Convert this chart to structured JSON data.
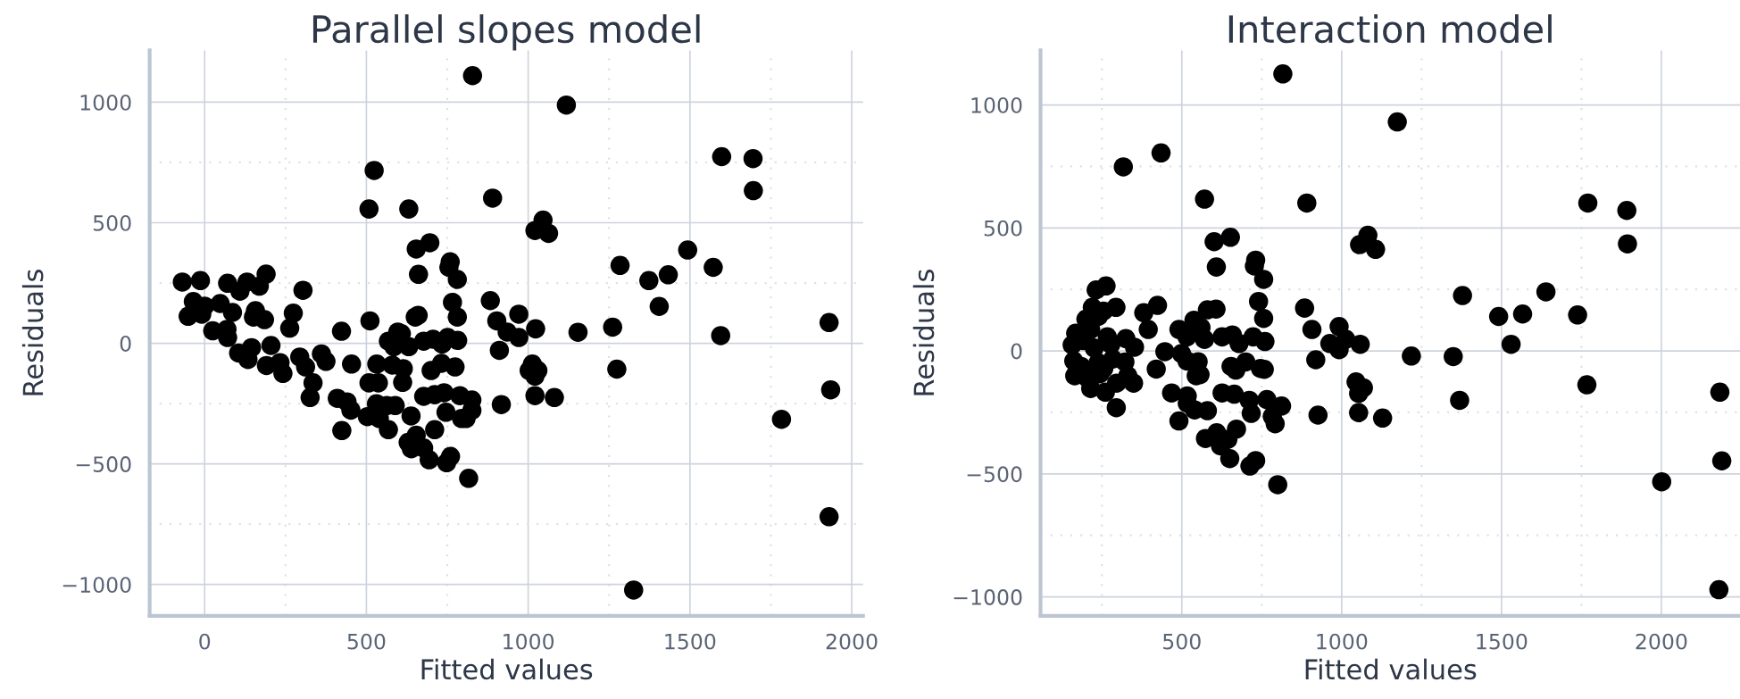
{
  "chart_data": [
    {
      "type": "scatter",
      "title": "Parallel slopes model",
      "xlabel": "Fitted values",
      "ylabel": "Residuals",
      "marker": "circle",
      "grid": true,
      "xlim": [
        -170,
        2035
      ],
      "ylim": [
        -1130,
        1215
      ],
      "xticks": [
        0,
        {
          "value": 250,
          "label": null
        },
        500,
        {
          "value": 750,
          "label": null
        },
        1000,
        {
          "value": 1250,
          "label": null
        },
        1500,
        {
          "value": 1750,
          "label": null
        },
        2000
      ],
      "yticks": [
        -1000,
        {
          "value": -750,
          "label": null
        },
        -500,
        {
          "value": -250,
          "label": null
        },
        0,
        {
          "value": 250,
          "label": null
        },
        500,
        {
          "value": 750,
          "label": null
        },
        1000
      ],
      "series": [
        {
          "color": "#000000",
          "x": [
            828,
            524,
            508,
            631,
            890,
            654,
            696,
            661,
            759,
            755,
            781,
            -69,
            -13,
            71,
            131,
            190,
            169,
            109,
            -35,
            0,
            48,
            -51,
            -9,
            86,
            157,
            185,
            151,
            25,
            71,
            69,
            304,
            274,
            263,
            105,
            145,
            134,
            205,
            191,
            233,
            242,
            294,
            312,
            361,
            375,
            335,
            326,
            423,
            454,
            511,
            410,
            440,
            452,
            424,
            532,
            508,
            537,
            580,
            614,
            612,
            597,
            608,
            568,
            585,
            631,
            651,
            660,
            677,
            706,
            751,
            782,
            734,
            766,
            781,
            700,
            732,
            774,
            531,
            563,
            589,
            503,
            540,
            568,
            638,
            677,
            711,
            740,
            789,
            826,
            746,
            794,
            808,
            826,
            629,
            654,
            639,
            677,
            711,
            694,
            748,
            760,
            816,
            883,
            903,
            911,
            917,
            1118,
            1598,
            1695,
            1696,
            1046,
            1021,
            1063,
            1493,
            1284,
            1572,
            1373,
            1433,
            1405,
            971,
            935,
            971,
            1023,
            1154,
            1261,
            1595,
            1930,
            1013,
            1003,
            1030,
            1021,
            1274,
            1021,
            1081,
            1935,
            1783,
            1930,
            1326
          ],
          "values": [
            1110,
            717,
            557,
            557,
            602,
            391,
            417,
            286,
            338,
            315,
            265,
            254,
            260,
            249,
            254,
            287,
            237,
            216,
            173,
            154,
            165,
            112,
            121,
            128,
            135,
            98,
            109,
            52,
            24,
            58,
            220,
            125,
            63,
            -40,
            -18,
            -67,
            -9,
            -92,
            -80,
            -125,
            -57,
            -98,
            -44,
            -75,
            -164,
            -225,
            50,
            -86,
            93,
            -228,
            -243,
            -277,
            -362,
            -86,
            -164,
            -164,
            -90,
            -105,
            -162,
            47,
            40,
            9,
            -14,
            -14,
            109,
            116,
            9,
            17,
            24,
            12,
            -3,
            170,
            109,
            -113,
            -83,
            -98,
            -251,
            -258,
            -258,
            -304,
            -312,
            -358,
            -301,
            -220,
            -213,
            -205,
            -217,
            -235,
            -286,
            -312,
            -312,
            -278,
            -411,
            -381,
            -437,
            -434,
            -358,
            -483,
            -495,
            -469,
            -560,
            177,
            93,
            -29,
            -254,
            988,
            774,
            766,
            633,
            511,
            468,
            456,
            387,
            323,
            315,
            260,
            284,
            153,
            121,
            47,
            24,
            60,
            46,
            67,
            32,
            86,
            -86,
            -113,
            -113,
            -136,
            -107,
            -217,
            -225,
            -193,
            -315,
            -719,
            -1023
          ]
        }
      ]
    },
    {
      "type": "scatter",
      "title": "Interaction model",
      "xlabel": "Fitted values",
      "ylabel": "Residuals",
      "marker": "circle",
      "grid": true,
      "xlim": [
        58,
        2246
      ],
      "ylim": [
        -1077,
        1222
      ],
      "xticks": [
        {
          "value": 250,
          "label": null
        },
        500,
        {
          "value": 750,
          "label": null
        },
        1000,
        {
          "value": 1250,
          "label": null
        },
        1500,
        {
          "value": 1750,
          "label": null
        },
        2000
      ],
      "yticks": [
        -1000,
        {
          "value": -750,
          "label": null
        },
        -500,
        {
          "value": -250,
          "label": null
        },
        0,
        {
          "value": 250,
          "label": null
        },
        500,
        {
          "value": 750,
          "label": null
        },
        1000
      ],
      "series": [
        {
          "color": "#000000",
          "x": [
            816,
            1174,
            317,
            435,
            571,
            891,
            601,
            652,
            608,
            731,
            727,
            756,
            1056,
            1082,
            1106,
            232,
            263,
            294,
            381,
            424,
            395,
            580,
            607,
            740,
            756,
            884,
            907,
            919,
            926,
            992,
            963,
            992,
            1013,
            1058,
            1045,
            1068,
            1053,
            1053,
            1128,
            220,
            200,
            239,
            168,
            215,
            267,
            157,
            191,
            226,
            278,
            325,
            352,
            162,
            238,
            284,
            322,
            165,
            203,
            244,
            215,
            261,
            296,
            331,
            349,
            295,
            255,
            185,
            256,
            420,
            447,
            499,
            516,
            551,
            545,
            557,
            491,
            538,
            516,
            560,
            571,
            626,
            658,
            679,
            723,
            760,
            654,
            669,
            700,
            746,
            758,
            468,
            517,
            517,
            540,
            580,
            491,
            626,
            664,
            711,
            766,
            812,
            717,
            783,
            792,
            574,
            609,
            621,
            644,
            671,
            650,
            713,
            731,
            800,
            1770,
            1892,
            1894,
            1378,
            1491,
            1566,
            1639,
            1738,
            1530,
            1218,
            1349,
            1369,
            1767,
            2183,
            2189,
            2001,
            2180
          ],
          "values": [
            1126,
            931,
            748,
            805,
            617,
            601,
            444,
            462,
            341,
            369,
            345,
            291,
            432,
            470,
            413,
            248,
            264,
            177,
            155,
            185,
            87,
            167,
            170,
            201,
            132,
            174,
            87,
            -36,
            -261,
            99,
            30,
            5,
            47,
            27,
            -126,
            -150,
            -173,
            -251,
            -273,
            177,
            129,
            140,
            72,
            87,
            57,
            24,
            42,
            12,
            27,
            50,
            15,
            -41,
            -48,
            -33,
            -45,
            -101,
            -108,
            -93,
            -153,
            -168,
            -131,
            -101,
            -131,
            -231,
            162,
            -63,
            -71,
            -74,
            -3,
            -11,
            -41,
            -44,
            -101,
            -96,
            87,
            125,
            57,
            95,
            47,
            57,
            65,
            30,
            57,
            38,
            -63,
            -78,
            -45,
            -71,
            -75,
            -171,
            -183,
            -213,
            -240,
            -243,
            -285,
            -171,
            -176,
            -201,
            -198,
            -224,
            -254,
            -266,
            -296,
            -356,
            -333,
            -386,
            -360,
            -318,
            -438,
            -468,
            -446,
            -544,
            601,
            571,
            435,
            225,
            140,
            150,
            240,
            146,
            27,
            -21,
            -23,
            -201,
            -138,
            -168,
            -447,
            -532,
            -971
          ]
        }
      ]
    }
  ]
}
